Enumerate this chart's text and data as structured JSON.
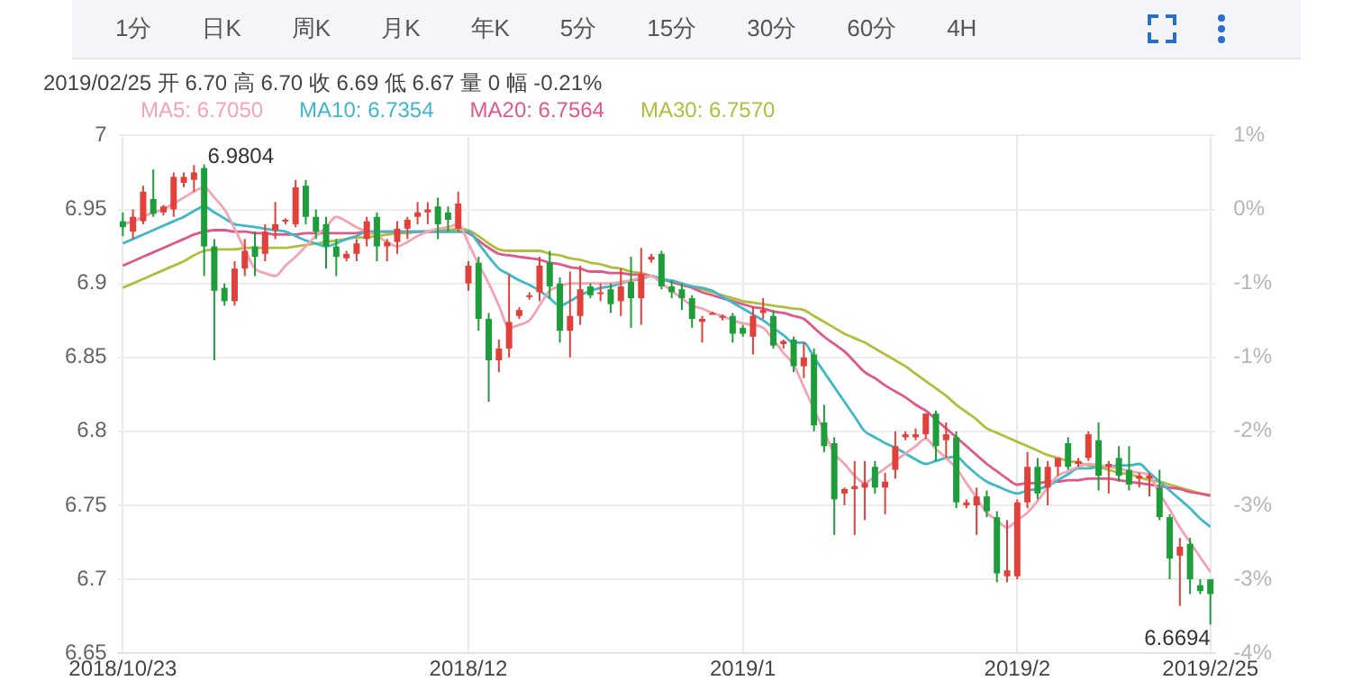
{
  "chart_data": [
    {
      "type": "other",
      "annotations": [
        "1分",
        "日K",
        "周K",
        "月K",
        "年K",
        "5分",
        "15分",
        "30分",
        "60分",
        "4H"
      ]
    },
    {
      "type": "candlestick",
      "subtitle": "2019/02/25 开 6.70 高 6.70 收 6.69 低 6.67 量 0 幅 -0.21%",
      "annotations": [
        "6.9804",
        {
          "text": "6.6694",
          "x": "2019/2/25",
          "y": 6.6694
        }
      ],
      "categories": [
        "2018/10/23",
        null,
        null,
        null,
        null,
        null,
        null,
        null,
        null,
        null,
        null,
        null,
        null,
        null,
        null,
        null,
        null,
        null,
        null,
        null,
        null,
        null,
        null,
        null,
        null,
        null,
        null,
        null,
        null,
        null,
        null,
        null,
        null,
        null,
        "2018/12",
        null,
        null,
        null,
        null,
        null,
        null,
        null,
        null,
        null,
        null,
        null,
        null,
        null,
        null,
        null,
        null,
        null,
        null,
        null,
        null,
        null,
        null,
        null,
        null,
        null,
        null,
        "2019/1",
        null,
        null,
        null,
        null,
        null,
        null,
        null,
        null,
        null,
        null,
        null,
        null,
        null,
        null,
        null,
        null,
        null,
        null,
        null,
        null,
        null,
        null,
        null,
        null,
        null,
        null,
        "2019/2",
        null,
        null,
        null,
        null,
        null,
        null,
        null,
        null,
        null,
        null,
        null,
        null,
        null,
        null,
        null,
        null,
        null,
        null,
        "2019/2/25"
      ],
      "ohlc": [
        [
          6.942,
          6.948,
          6.932,
          6.938
        ],
        [
          6.935,
          6.95,
          6.93,
          6.945
        ],
        [
          6.942,
          6.966,
          6.94,
          6.962
        ],
        [
          6.957,
          6.977,
          6.945,
          6.947
        ],
        [
          6.948,
          6.953,
          6.946,
          6.952
        ],
        [
          6.95,
          6.975,
          6.945,
          6.972
        ],
        [
          6.968,
          6.975,
          6.965,
          6.972
        ],
        [
          6.97,
          6.98,
          6.962,
          6.975
        ],
        [
          6.978,
          6.9804,
          6.905,
          6.925
        ],
        [
          6.925,
          6.93,
          6.848,
          6.895
        ],
        [
          6.897,
          6.9,
          6.885,
          6.888
        ],
        [
          6.888,
          6.915,
          6.885,
          6.91
        ],
        [
          6.91,
          6.93,
          6.905,
          6.922
        ],
        [
          6.925,
          6.935,
          6.905,
          6.918
        ],
        [
          6.92,
          6.94,
          6.915,
          6.935
        ],
        [
          6.936,
          6.955,
          6.93,
          6.94
        ],
        [
          6.942,
          6.944,
          6.94,
          6.943
        ],
        [
          6.94,
          6.97,
          6.938,
          6.965
        ],
        [
          6.966,
          6.97,
          6.94,
          6.945
        ],
        [
          6.945,
          6.95,
          6.93,
          6.935
        ],
        [
          6.94,
          6.945,
          6.91,
          6.925
        ],
        [
          6.925,
          6.93,
          6.905,
          6.918
        ],
        [
          6.917,
          6.922,
          6.915,
          6.92
        ],
        [
          6.92,
          6.93,
          6.915,
          6.927
        ],
        [
          6.93,
          6.945,
          6.925,
          6.942
        ],
        [
          6.945,
          6.948,
          6.915,
          6.925
        ],
        [
          6.925,
          6.93,
          6.915,
          6.928
        ],
        [
          6.928,
          6.942,
          6.92,
          6.937
        ],
        [
          6.937,
          6.945,
          6.93,
          6.943
        ],
        [
          6.945,
          6.955,
          6.94,
          6.948
        ],
        [
          6.948,
          6.955,
          6.94,
          6.95
        ],
        [
          6.952,
          6.958,
          6.93,
          6.94
        ],
        [
          6.948,
          6.952,
          6.935,
          6.943
        ],
        [
          6.937,
          6.962,
          6.935,
          6.954
        ],
        [
          6.9,
          6.915,
          6.895,
          6.912
        ],
        [
          6.914,
          6.918,
          6.868,
          6.876
        ],
        [
          6.876,
          6.88,
          6.82,
          6.848
        ],
        [
          6.848,
          6.862,
          6.84,
          6.856
        ],
        [
          6.856,
          6.906,
          6.85,
          6.874
        ],
        [
          6.878,
          6.884,
          6.876,
          6.882
        ],
        [
          6.891,
          6.894,
          6.889,
          6.892
        ],
        [
          6.894,
          6.918,
          6.888,
          6.912
        ],
        [
          6.914,
          6.922,
          6.89,
          6.898
        ],
        [
          6.9,
          6.904,
          6.86,
          6.868
        ],
        [
          6.868,
          6.908,
          6.85,
          6.878
        ],
        [
          6.878,
          6.912,
          6.872,
          6.896
        ],
        [
          6.898,
          6.9,
          6.89,
          6.892
        ],
        [
          6.894,
          6.9,
          6.888,
          6.894
        ],
        [
          6.896,
          6.9,
          6.88,
          6.886
        ],
        [
          6.888,
          6.91,
          6.878,
          6.898
        ],
        [
          6.901,
          6.918,
          6.87,
          6.89
        ],
        [
          6.89,
          6.924,
          6.872,
          6.906
        ],
        [
          6.916,
          6.92,
          6.914,
          6.918
        ],
        [
          6.92,
          6.922,
          6.896,
          6.898
        ],
        [
          6.898,
          6.902,
          6.89,
          6.894
        ],
        [
          6.896,
          6.9,
          6.882,
          6.89
        ],
        [
          6.89,
          6.892,
          6.87,
          6.876
        ],
        [
          6.874,
          6.878,
          6.86,
          6.876
        ],
        [
          6.88,
          6.881,
          6.879,
          6.88
        ],
        [
          6.877,
          6.879,
          6.875,
          6.878
        ],
        [
          6.878,
          6.88,
          6.86,
          6.866
        ],
        [
          6.87,
          6.872,
          6.864,
          6.866
        ],
        [
          6.864,
          6.884,
          6.852,
          6.878
        ],
        [
          6.88,
          6.89,
          6.876,
          6.882
        ],
        [
          6.878,
          6.882,
          6.856,
          6.858
        ],
        [
          6.859,
          6.862,
          6.856,
          6.861
        ],
        [
          6.862,
          6.864,
          6.84,
          6.844
        ],
        [
          6.844,
          6.86,
          6.836,
          6.85
        ],
        [
          6.852,
          6.856,
          6.8,
          6.804
        ],
        [
          6.806,
          6.818,
          6.786,
          6.79
        ],
        [
          6.792,
          6.796,
          6.73,
          6.754
        ],
        [
          6.758,
          6.762,
          6.75,
          6.761
        ],
        [
          6.761,
          6.78,
          6.73,
          6.763
        ],
        [
          6.762,
          6.78,
          6.74,
          6.765
        ],
        [
          6.776,
          6.78,
          6.758,
          6.762
        ],
        [
          6.762,
          6.772,
          6.744,
          6.766
        ],
        [
          6.774,
          6.8,
          6.768,
          6.79
        ],
        [
          6.796,
          6.8,
          6.794,
          6.798
        ],
        [
          6.796,
          6.802,
          6.794,
          6.798
        ],
        [
          6.798,
          6.812,
          6.795,
          6.812
        ],
        [
          6.812,
          6.814,
          6.78,
          6.79
        ],
        [
          6.794,
          6.806,
          6.782,
          6.798
        ],
        [
          6.796,
          6.8,
          6.748,
          6.752
        ],
        [
          6.75,
          6.754,
          6.748,
          6.752
        ],
        [
          6.75,
          6.762,
          6.73,
          6.756
        ],
        [
          6.756,
          6.76,
          6.742,
          6.746
        ],
        [
          6.742,
          6.746,
          6.698,
          6.704
        ],
        [
          6.702,
          6.74,
          6.698,
          6.706
        ],
        [
          6.702,
          6.754,
          6.7,
          6.752
        ],
        [
          6.752,
          6.786,
          6.748,
          6.776
        ],
        [
          6.776,
          6.782,
          6.754,
          6.758
        ],
        [
          6.762,
          6.78,
          6.75,
          6.776
        ],
        [
          6.776,
          6.782,
          6.77,
          6.782
        ],
        [
          6.792,
          6.796,
          6.774,
          6.776
        ],
        [
          6.778,
          6.782,
          6.776,
          6.78
        ],
        [
          6.782,
          6.8,
          6.78,
          6.798
        ],
        [
          6.794,
          6.806,
          6.76,
          6.77
        ],
        [
          6.776,
          6.78,
          6.758,
          6.778
        ],
        [
          6.782,
          6.79,
          6.766,
          6.77
        ],
        [
          6.774,
          6.79,
          6.76,
          6.764
        ],
        [
          6.768,
          6.772,
          6.762,
          6.77
        ],
        [
          6.768,
          6.772,
          6.756,
          6.77
        ],
        [
          6.762,
          6.774,
          6.74,
          6.742
        ],
        [
          6.742,
          6.744,
          6.7,
          6.714
        ],
        [
          6.716,
          6.728,
          6.682,
          6.722
        ],
        [
          6.724,
          6.728,
          6.69,
          6.7
        ],
        [
          6.696,
          6.7,
          6.69,
          6.692
        ],
        [
          6.7,
          6.7,
          6.6694,
          6.69
        ]
      ],
      "series": [
        {
          "type": "line",
          "name": "MA5: 6.7050",
          "color": "#f4a3b4",
          "values": [
            6.94,
            6.942,
            6.945,
            6.948,
            6.95,
            6.954,
            6.958,
            6.962,
            6.965,
            6.958,
            6.95,
            6.937,
            6.923,
            6.91,
            6.907,
            6.905,
            6.912,
            6.918,
            6.925,
            6.932,
            6.938,
            6.945,
            6.942,
            6.938,
            6.935,
            6.932,
            6.928,
            6.925,
            6.928,
            6.932,
            6.935,
            6.937,
            6.938,
            6.94,
            6.927,
            6.913,
            6.9,
            6.885,
            6.87,
            6.872,
            6.875,
            6.885,
            6.895,
            6.898,
            6.9,
            6.9,
            6.9,
            6.9,
            6.9,
            6.901,
            6.902,
            6.904,
            6.905,
            6.9,
            6.895,
            6.89,
            6.885,
            6.883,
            6.88,
            6.878,
            6.875,
            6.873,
            6.872,
            6.87,
            6.862,
            6.853,
            6.845,
            6.83,
            6.815,
            6.8,
            6.785,
            6.778,
            6.77,
            6.765,
            6.77,
            6.775,
            6.78,
            6.785,
            6.79,
            6.795,
            6.788,
            6.782,
            6.775,
            6.765,
            6.755,
            6.745,
            6.74,
            6.735,
            6.74,
            6.745,
            6.753,
            6.762,
            6.77,
            6.773,
            6.776,
            6.778,
            6.777,
            6.776,
            6.775,
            6.773,
            6.772,
            6.77,
            6.758,
            6.747,
            6.735,
            6.725,
            6.715,
            6.705
          ]
        },
        {
          "type": "line",
          "name": "MA10: 6.7354",
          "color": "#3fb8c9",
          "values": [
            6.927,
            6.93,
            6.933,
            6.936,
            6.939,
            6.942,
            6.945,
            6.949,
            6.952,
            6.948,
            6.944,
            6.94,
            6.939,
            6.938,
            6.937,
            6.936,
            6.935,
            6.932,
            6.929,
            6.927,
            6.925,
            6.927,
            6.93,
            6.932,
            6.935,
            6.935,
            6.935,
            6.935,
            6.935,
            6.935,
            6.935,
            6.935,
            6.935,
            6.935,
            6.935,
            6.927,
            6.918,
            6.91,
            6.906,
            6.902,
            6.899,
            6.895,
            6.89,
            6.885,
            6.888,
            6.892,
            6.895,
            6.897,
            6.898,
            6.9,
            6.902,
            6.903,
            6.905,
            6.903,
            6.902,
            6.9,
            6.898,
            6.897,
            6.895,
            6.891,
            6.887,
            6.883,
            6.879,
            6.875,
            6.87,
            6.865,
            6.86,
            6.86,
            6.85,
            6.84,
            6.83,
            6.82,
            6.81,
            6.8,
            6.796,
            6.792,
            6.789,
            6.785,
            6.781,
            6.778,
            6.78,
            6.782,
            6.783,
            6.777,
            6.771,
            6.766,
            6.763,
            6.76,
            6.758,
            6.76,
            6.761,
            6.763,
            6.767,
            6.771,
            6.775,
            6.775,
            6.776,
            6.776,
            6.777,
            6.777,
            6.778,
            6.772,
            6.766,
            6.76,
            6.754,
            6.748,
            6.741,
            6.7354
          ]
        },
        {
          "type": "line",
          "name": "MA20: 6.7564",
          "color": "#e0588a",
          "values": [
            6.912,
            6.915,
            6.918,
            6.921,
            6.924,
            6.927,
            6.93,
            6.933,
            6.935,
            6.936,
            6.936,
            6.935,
            6.935,
            6.934,
            6.934,
            6.933,
            6.933,
            6.933,
            6.934,
            6.934,
            6.934,
            6.934,
            6.934,
            6.934,
            6.935,
            6.935,
            6.935,
            6.935,
            6.935,
            6.935,
            6.935,
            6.935,
            6.935,
            6.935,
            6.934,
            6.929,
            6.924,
            6.92,
            6.919,
            6.918,
            6.917,
            6.916,
            6.914,
            6.913,
            6.911,
            6.91,
            6.908,
            6.908,
            6.907,
            6.907,
            6.906,
            6.906,
            6.905,
            6.903,
            6.901,
            6.899,
            6.897,
            6.894,
            6.892,
            6.89,
            6.888,
            6.886,
            6.884,
            6.883,
            6.881,
            6.88,
            6.878,
            6.876,
            6.87,
            6.864,
            6.859,
            6.854,
            6.847,
            6.84,
            6.836,
            6.831,
            6.827,
            6.823,
            6.818,
            6.814,
            6.808,
            6.802,
            6.796,
            6.79,
            6.784,
            6.778,
            6.773,
            6.768,
            6.764,
            6.765,
            6.765,
            6.766,
            6.766,
            6.767,
            6.767,
            6.768,
            6.768,
            6.768,
            6.767,
            6.766,
            6.765,
            6.764,
            6.763,
            6.762,
            6.761,
            6.759,
            6.758,
            6.7564
          ]
        },
        {
          "type": "line",
          "name": "MA30: 6.7570",
          "color": "#b3bd3c",
          "values": [
            6.897,
            6.9,
            6.903,
            6.906,
            6.909,
            6.912,
            6.915,
            6.919,
            6.922,
            6.923,
            6.923,
            6.923,
            6.924,
            6.924,
            6.924,
            6.924,
            6.924,
            6.925,
            6.926,
            6.927,
            6.928,
            6.929,
            6.93,
            6.931,
            6.931,
            6.932,
            6.933,
            6.934,
            6.934,
            6.935,
            6.935,
            6.936,
            6.936,
            6.937,
            6.936,
            6.932,
            6.927,
            6.923,
            6.922,
            6.922,
            6.922,
            6.922,
            6.92,
            6.919,
            6.917,
            6.916,
            6.914,
            6.913,
            6.911,
            6.91,
            6.908,
            6.907,
            6.905,
            null,
            6.901,
            6.899,
            6.898,
            6.896,
            6.894,
            6.892,
            6.89,
            6.888,
            6.887,
            6.886,
            6.885,
            6.884,
            6.883,
            6.882,
            6.878,
            6.874,
            6.87,
            6.866,
            6.863,
            6.86,
            6.856,
            6.852,
            6.848,
            6.844,
            6.839,
            6.834,
            6.829,
            6.824,
            6.818,
            6.813,
            6.808,
            6.802,
            6.799,
            6.796,
            6.793,
            6.79,
            6.787,
            6.784,
            6.782,
            6.78,
            6.779,
            6.777,
            6.776,
            6.774,
            6.772,
            6.771,
            6.769,
            6.767,
            6.766,
            6.764,
            6.762,
            6.76,
            6.758,
            6.757
          ]
        }
      ],
      "ylim": [
        6.65,
        7
      ],
      "yticks": [
        6.65,
        6.7,
        6.75,
        6.8,
        6.85,
        6.9,
        6.95,
        7
      ],
      "y2lim": [
        -4.18,
        0.86
      ],
      "y2ticks": [
        {
          "value": -4.18,
          "label": "-4%"
        },
        {
          "value": -3.46,
          "label": "-3%"
        },
        {
          "value": -2.74,
          "label": "-3%"
        },
        {
          "value": -2.02,
          "label": "-2%"
        },
        {
          "value": -1.3,
          "label": "-1%"
        },
        {
          "value": -0.58,
          "label": "-1%"
        },
        {
          "value": 0.14,
          "label": "0%"
        },
        {
          "value": 0.86,
          "label": "1%"
        }
      ],
      "grid": true,
      "legend": "top left",
      "marker": "none"
    }
  ]
}
